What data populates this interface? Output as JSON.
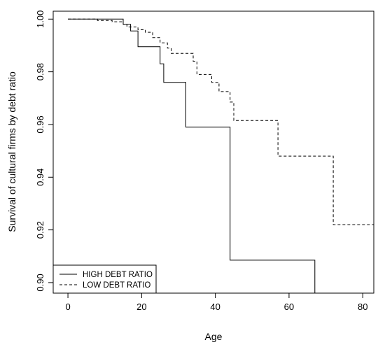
{
  "chart_data": {
    "type": "line",
    "xlabel": "Age",
    "ylabel": "Survival of cultural firms by debt ratio",
    "xlim": [
      -4,
      83
    ],
    "ylim": [
      0.896,
      1.003
    ],
    "x_ticks": [
      0,
      20,
      40,
      60,
      80
    ],
    "y_ticks": [
      0.9,
      0.92,
      0.94,
      0.96,
      0.98,
      1.0
    ],
    "y_tick_labels": [
      "0.90",
      "0.92",
      "0.94",
      "0.96",
      "0.98",
      "1.00"
    ],
    "legend_position": "bottom-left",
    "series": [
      {
        "name": "HIGH DEBT RATIO",
        "line_style": "solid",
        "x": [
          0,
          15,
          15,
          17,
          17,
          19,
          19,
          25,
          25,
          26,
          26,
          32,
          32,
          44,
          44,
          67,
          67
        ],
        "y": [
          1.0,
          1.0,
          0.998,
          0.998,
          0.9955,
          0.9955,
          0.9895,
          0.9895,
          0.983,
          0.983,
          0.976,
          0.976,
          0.959,
          0.959,
          0.9085,
          0.9085,
          0.896
        ]
      },
      {
        "name": "LOW DEBT RATIO",
        "line_style": "dashed",
        "x": [
          0,
          8,
          8,
          12,
          12,
          15,
          15,
          16,
          16,
          19,
          19,
          21,
          21,
          23,
          23,
          25,
          25,
          27,
          27,
          28,
          28,
          30,
          30,
          34,
          34,
          35,
          35,
          38,
          38,
          39,
          39,
          41,
          41,
          44,
          44,
          45,
          45,
          57,
          57,
          72,
          72,
          83
        ],
        "y": [
          1.0,
          1.0,
          0.9995,
          0.9995,
          0.999,
          0.999,
          0.998,
          0.998,
          0.997,
          0.997,
          0.996,
          0.996,
          0.995,
          0.995,
          0.993,
          0.993,
          0.991,
          0.991,
          0.989,
          0.989,
          0.987,
          0.987,
          0.987,
          0.987,
          0.984,
          0.984,
          0.979,
          0.979,
          0.979,
          0.979,
          0.976,
          0.976,
          0.9725,
          0.9725,
          0.9685,
          0.9685,
          0.9615,
          0.9615,
          0.948,
          0.948,
          0.922,
          0.922
        ]
      }
    ]
  }
}
